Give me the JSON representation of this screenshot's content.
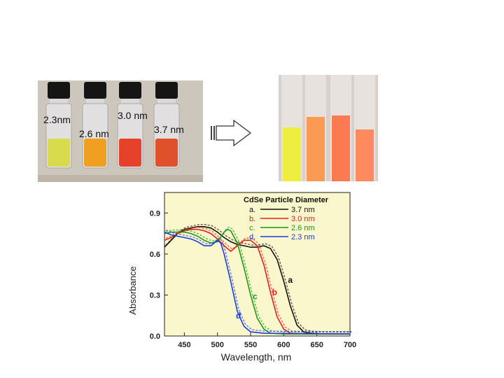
{
  "photo_labels": {
    "vial_1": "2.3nm",
    "vial_2": "2.6 nm",
    "vial_3": "3.0 nm",
    "vial_4": "3.7 nm"
  },
  "colors": {
    "vial_liquids": [
      "#d8dc4c",
      "#f0a020",
      "#e6412a",
      "#e0502a"
    ],
    "cuvette_liquids": [
      "#eeee40",
      "#fb9a52",
      "#fc7a52",
      "#ff8a60"
    ],
    "plot_background": "#fbf7cc",
    "series_a": "#111111",
    "series_b": "#e62020",
    "series_c": "#1a9a1a",
    "series_d": "#1a3ae6"
  },
  "chart_data": {
    "type": "line",
    "title": "CdSe Particle Diameter",
    "xlabel": "Wavelength, nm",
    "ylabel": "Absorbance",
    "xlim": [
      420,
      700
    ],
    "ylim": [
      0.0,
      1.05
    ],
    "x_ticks": [
      "450",
      "500",
      "550",
      "600",
      "650",
      "700"
    ],
    "y_ticks": [
      "0.0",
      "0.3",
      "0.6",
      "0.9"
    ],
    "legend_position": "top-right",
    "series": [
      {
        "name": "3.7 nm",
        "legend_letter": "a.",
        "curve_label": "a",
        "points": [
          [
            420,
            0.65
          ],
          [
            430,
            0.7
          ],
          [
            440,
            0.75
          ],
          [
            450,
            0.78
          ],
          [
            460,
            0.79
          ],
          [
            470,
            0.8
          ],
          [
            480,
            0.8
          ],
          [
            490,
            0.79
          ],
          [
            500,
            0.76
          ],
          [
            510,
            0.72
          ],
          [
            520,
            0.69
          ],
          [
            530,
            0.67
          ],
          [
            540,
            0.66
          ],
          [
            550,
            0.65
          ],
          [
            560,
            0.65
          ],
          [
            570,
            0.66
          ],
          [
            580,
            0.64
          ],
          [
            590,
            0.56
          ],
          [
            600,
            0.4
          ],
          [
            610,
            0.22
          ],
          [
            620,
            0.08
          ],
          [
            630,
            0.03
          ],
          [
            640,
            0.02
          ],
          [
            660,
            0.015
          ],
          [
            700,
            0.015
          ]
        ]
      },
      {
        "name": "3.0 nm",
        "legend_letter": "b.",
        "curve_label": "b",
        "points": [
          [
            420,
            0.7
          ],
          [
            430,
            0.72
          ],
          [
            440,
            0.75
          ],
          [
            450,
            0.77
          ],
          [
            460,
            0.78
          ],
          [
            470,
            0.78
          ],
          [
            480,
            0.77
          ],
          [
            490,
            0.75
          ],
          [
            500,
            0.71
          ],
          [
            510,
            0.66
          ],
          [
            520,
            0.62
          ],
          [
            530,
            0.66
          ],
          [
            540,
            0.7
          ],
          [
            550,
            0.7
          ],
          [
            560,
            0.66
          ],
          [
            570,
            0.52
          ],
          [
            580,
            0.32
          ],
          [
            590,
            0.14
          ],
          [
            600,
            0.05
          ],
          [
            610,
            0.02
          ],
          [
            630,
            0.015
          ],
          [
            700,
            0.015
          ]
        ]
      },
      {
        "name": "2.6 nm",
        "legend_letter": "c.",
        "curve_label": "c",
        "points": [
          [
            420,
            0.75
          ],
          [
            430,
            0.76
          ],
          [
            440,
            0.76
          ],
          [
            450,
            0.76
          ],
          [
            460,
            0.75
          ],
          [
            470,
            0.73
          ],
          [
            480,
            0.7
          ],
          [
            490,
            0.68
          ],
          [
            500,
            0.69
          ],
          [
            510,
            0.76
          ],
          [
            515,
            0.78
          ],
          [
            520,
            0.77
          ],
          [
            530,
            0.68
          ],
          [
            540,
            0.5
          ],
          [
            550,
            0.3
          ],
          [
            560,
            0.13
          ],
          [
            570,
            0.05
          ],
          [
            580,
            0.02
          ],
          [
            600,
            0.015
          ],
          [
            700,
            0.015
          ]
        ]
      },
      {
        "name": "2.3 nm",
        "legend_letter": "d.",
        "curve_label": "d",
        "points": [
          [
            420,
            0.76
          ],
          [
            430,
            0.74
          ],
          [
            440,
            0.73
          ],
          [
            450,
            0.72
          ],
          [
            460,
            0.71
          ],
          [
            470,
            0.69
          ],
          [
            480,
            0.66
          ],
          [
            490,
            0.66
          ],
          [
            500,
            0.7
          ],
          [
            505,
            0.68
          ],
          [
            510,
            0.6
          ],
          [
            520,
            0.4
          ],
          [
            530,
            0.18
          ],
          [
            540,
            0.07
          ],
          [
            550,
            0.03
          ],
          [
            570,
            0.02
          ],
          [
            700,
            0.015
          ]
        ]
      }
    ]
  }
}
